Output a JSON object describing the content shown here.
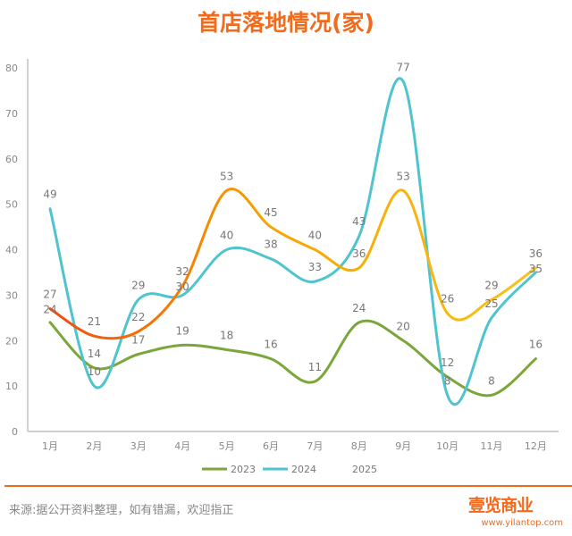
{
  "chart_data": {
    "type": "line",
    "title": "首店落地情况(家)",
    "xlabel": "",
    "ylabel": "",
    "categories": [
      "1月",
      "2月",
      "3月",
      "4月",
      "5月",
      "6月",
      "7月",
      "8月",
      "9月",
      "10月",
      "11月",
      "12月"
    ],
    "ylim": [
      0,
      80
    ],
    "yticks": [
      0,
      10,
      20,
      30,
      40,
      50,
      60,
      70,
      80
    ],
    "grid": false,
    "legend": "bottom",
    "smooth": true,
    "series": [
      {
        "name": "2023",
        "color": "#7aa63a",
        "values": [
          24,
          14,
          17,
          19,
          18,
          16,
          11,
          24,
          20,
          12,
          8,
          16
        ]
      },
      {
        "name": "2024",
        "color": "#4fc4cf",
        "values": [
          49,
          10,
          29,
          30,
          40,
          38,
          33,
          43,
          77,
          8,
          25,
          35
        ]
      },
      {
        "name": "2025",
        "color": "#f7a400",
        "color_start": "#f04a0c",
        "values": [
          27,
          21,
          22,
          32,
          53,
          45,
          40,
          36,
          53,
          26,
          29,
          36
        ]
      }
    ]
  },
  "footer": {
    "source": "来源:据公开资料整理，如有错漏，欢迎指正",
    "logo": "壹览商业",
    "url": "www.yilantop.com"
  }
}
